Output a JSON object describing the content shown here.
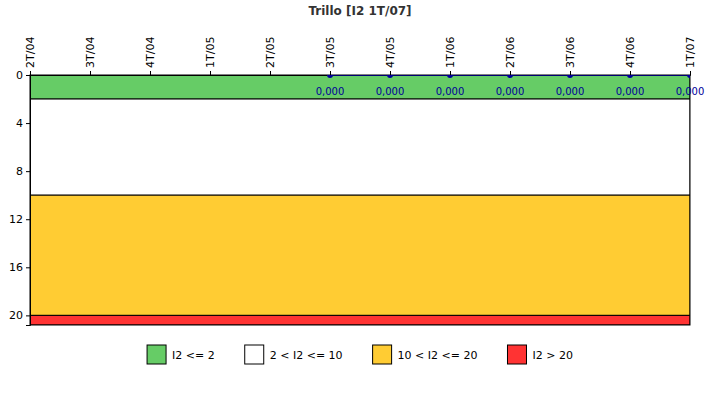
{
  "chart_data": {
    "type": "line",
    "title": "Trillo [I2 1T/07]",
    "categories": [
      "2T/04",
      "3T/04",
      "4T/04",
      "1T/05",
      "2T/05",
      "3T/05",
      "4T/05",
      "1T/06",
      "2T/06",
      "3T/06",
      "4T/06",
      "1T/07"
    ],
    "series": [
      {
        "color": "#000099",
        "marker": "circle",
        "line_style": "solid",
        "values": [
          null,
          null,
          null,
          null,
          null,
          0,
          0,
          0,
          0,
          0,
          0,
          0
        ],
        "value_labels": [
          null,
          null,
          null,
          null,
          null,
          "0,000",
          "0,000",
          "0,000",
          "0,000",
          "0,000",
          "0,000",
          "0,000"
        ]
      }
    ],
    "bands": [
      {
        "from": 0,
        "to": 2,
        "color": "#66cc66",
        "label": "I2 <= 2"
      },
      {
        "from": 2,
        "to": 10,
        "color": "#ffffff",
        "label": "2 < I2 <= 10"
      },
      {
        "from": 10,
        "to": 20,
        "color": "#ffcc33",
        "label": "10 < I2 <= 20"
      },
      {
        "from": 20,
        "to": 20.8,
        "color": "#ff3333",
        "label": "I2 > 20"
      }
    ],
    "ylim": [
      0,
      20.8
    ],
    "yticks": [
      0,
      4,
      8,
      12,
      16,
      20
    ],
    "grid": false,
    "legend": "bottom",
    "data_labels": true
  }
}
